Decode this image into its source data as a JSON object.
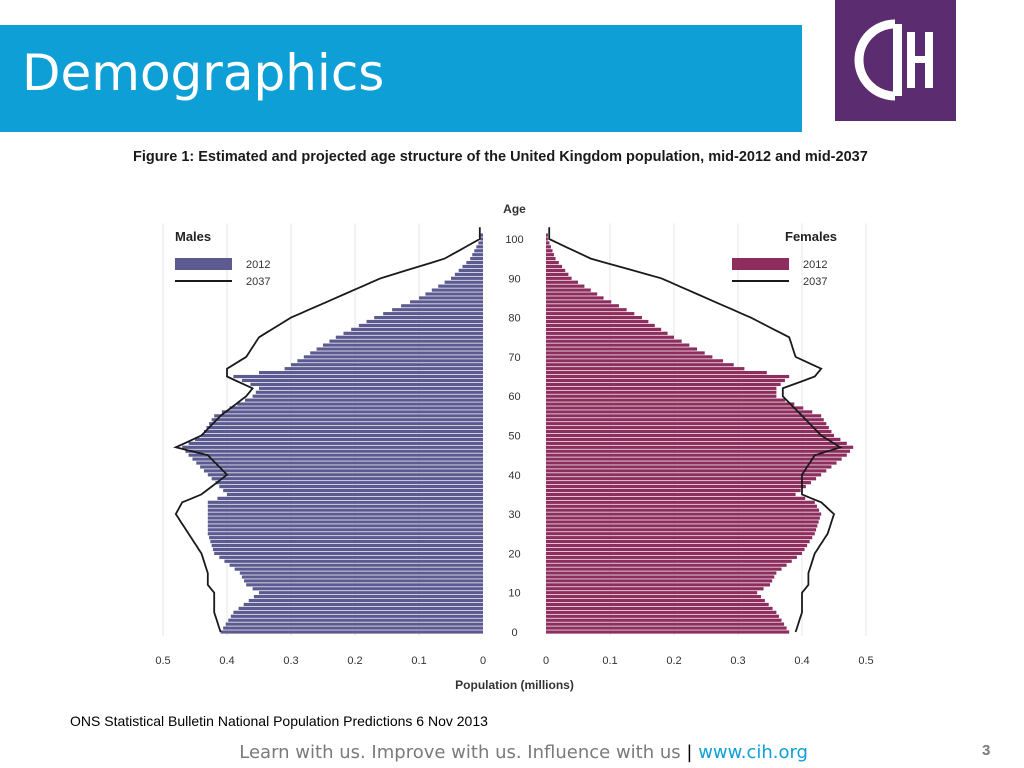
{
  "slide": {
    "title": "Demographics",
    "caption": "Figure 1: Estimated and projected age structure of the United Kingdom population, mid-2012 and mid-2037",
    "source": "ONS Statistical Bulletin National Population Predictions 6 Nov 2013",
    "footer_text": "Learn with us. Improve with us. Influence with us",
    "footer_sep": "|",
    "footer_url": "www.cih.org",
    "page_number": "3",
    "logo_icon": "cih-logo-icon",
    "colors": {
      "title_bar": "#0e9fd6",
      "logo_bg": "#5b2c6f",
      "males": "#5b5b92",
      "females": "#8e2e5e",
      "projection_line": "#1a1a1a"
    }
  },
  "chart_data": {
    "type": "bar",
    "orientation": "horizontal population pyramid",
    "age_axis_label": "Age",
    "xlabel": "Population (millions)",
    "age_ticks": [
      0,
      10,
      20,
      30,
      40,
      50,
      60,
      70,
      80,
      90,
      100
    ],
    "x_ticks_males": [
      "0.5",
      "0.4",
      "0.3",
      "0.2",
      "0.1",
      "0"
    ],
    "x_ticks_females": [
      "0",
      "0.1",
      "0.2",
      "0.3",
      "0.4",
      "0.5"
    ],
    "xlim": [
      0,
      0.5
    ],
    "grid": true,
    "panels": [
      {
        "name": "Males",
        "legend": [
          {
            "label": "2012",
            "style": "bar"
          },
          {
            "label": "2037",
            "style": "line"
          }
        ],
        "legend_position": "top-left"
      },
      {
        "name": "Females",
        "legend": [
          {
            "label": "2012",
            "style": "bar"
          },
          {
            "label": "2037",
            "style": "line"
          }
        ],
        "legend_position": "top-right"
      }
    ],
    "ages": [
      0,
      5,
      10,
      12,
      15,
      20,
      25,
      30,
      33,
      35,
      40,
      45,
      47,
      50,
      55,
      60,
      62,
      65,
      67,
      70,
      75,
      80,
      85,
      90,
      95,
      100
    ],
    "series": [
      {
        "name": "2012",
        "sex": "Males",
        "values": [
          0.41,
          0.39,
          0.35,
          0.37,
          0.38,
          0.42,
          0.43,
          0.43,
          0.43,
          0.4,
          0.43,
          0.46,
          0.47,
          0.44,
          0.42,
          0.36,
          0.35,
          0.39,
          0.31,
          0.28,
          0.23,
          0.17,
          0.1,
          0.05,
          0.02,
          0.004
        ]
      },
      {
        "name": "2037",
        "sex": "Males",
        "values": [
          0.41,
          0.42,
          0.42,
          0.43,
          0.43,
          0.44,
          0.46,
          0.48,
          0.47,
          0.44,
          0.4,
          0.43,
          0.48,
          0.44,
          0.41,
          0.37,
          0.36,
          0.4,
          0.4,
          0.37,
          0.35,
          0.3,
          0.23,
          0.16,
          0.06,
          0.005
        ]
      },
      {
        "name": "2012",
        "sex": "Females",
        "values": [
          0.38,
          0.36,
          0.33,
          0.35,
          0.36,
          0.4,
          0.42,
          0.43,
          0.42,
          0.39,
          0.43,
          0.47,
          0.48,
          0.45,
          0.43,
          0.36,
          0.36,
          0.38,
          0.31,
          0.26,
          0.2,
          0.15,
          0.09,
          0.04,
          0.015,
          0.003
        ]
      },
      {
        "name": "2037",
        "sex": "Females",
        "values": [
          0.39,
          0.4,
          0.4,
          0.41,
          0.41,
          0.42,
          0.44,
          0.45,
          0.43,
          0.4,
          0.4,
          0.42,
          0.46,
          0.43,
          0.4,
          0.37,
          0.37,
          0.42,
          0.43,
          0.39,
          0.38,
          0.32,
          0.25,
          0.18,
          0.07,
          0.005
        ]
      }
    ]
  }
}
